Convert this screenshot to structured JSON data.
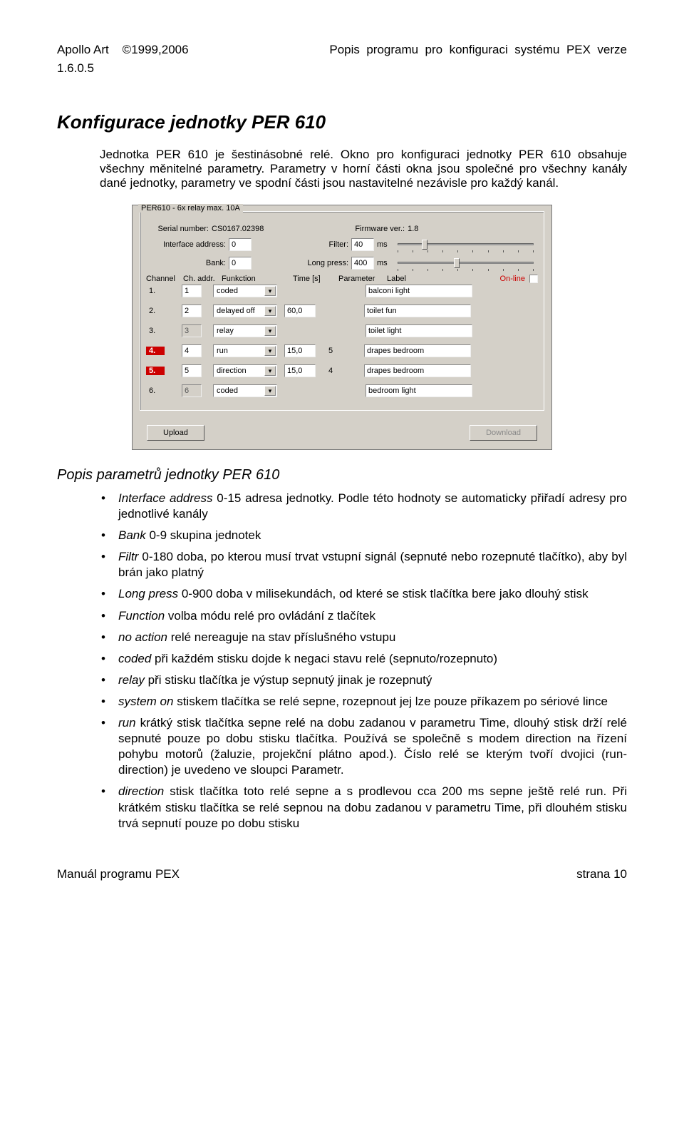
{
  "header": {
    "company": "Apollo Art",
    "copyright": "©1999,2006",
    "title_right": "Popis  programu  pro  konfiguraci  systému  PEX  verze",
    "version": "1.6.0.5"
  },
  "chapter": "Konfigurace jednotky PER 610",
  "intro": "Jednotka PER 610 je šestinásobné relé. Okno pro konfiguraci jednotky PER 610 obsahuje všechny měnitelné parametry. Parametry v horní části okna jsou společné pro všechny kanály dané jednotky, parametry ve spodní části jsou nastavitelné nezávisle pro každý kanál.",
  "shot": {
    "group_title": "PER610 - 6x relay max. 10A",
    "serial_lbl": "Serial number:",
    "serial": "CS0167.02398",
    "fw_lbl": "Firmware ver.:",
    "fw": "1.8",
    "iface_lbl": "Interface address:",
    "iface": "0",
    "bank_lbl": "Bank:",
    "bank": "0",
    "filter_lbl": "Filter:",
    "filter": "40",
    "filter_unit": "ms",
    "long_lbl": "Long press:",
    "long": "400",
    "long_unit": "ms",
    "hdr_channel": "Channel",
    "hdr_chaddr": "Ch. addr.",
    "hdr_func": "Funkction",
    "hdr_time": "Time [s]",
    "hdr_param": "Parameter",
    "hdr_label": "Label",
    "online": "On-line",
    "channels": [
      {
        "n": "1.",
        "addr": "1",
        "addr_gray": false,
        "func": "coded",
        "time": "",
        "param": "",
        "label": "balconi light",
        "red": false
      },
      {
        "n": "2.",
        "addr": "2",
        "addr_gray": false,
        "func": "delayed off",
        "time": "60,0",
        "param": "",
        "label": "toilet fun",
        "red": false
      },
      {
        "n": "3.",
        "addr": "3",
        "addr_gray": true,
        "func": "relay",
        "time": "",
        "param": "",
        "label": "toilet light",
        "red": false
      },
      {
        "n": "4.",
        "addr": "4",
        "addr_gray": false,
        "func": "run",
        "time": "15,0",
        "param": "5",
        "label": "drapes bedroom",
        "red": true
      },
      {
        "n": "5.",
        "addr": "5",
        "addr_gray": false,
        "func": "direction",
        "time": "15,0",
        "param": "4",
        "label": "drapes bedroom",
        "red": true
      },
      {
        "n": "6.",
        "addr": "6",
        "addr_gray": true,
        "func": "coded",
        "time": "",
        "param": "",
        "label": "bedroom light",
        "red": false
      }
    ],
    "upload": "Upload",
    "download": "Download"
  },
  "sub_title": "Popis parametrů jednotky PER 610",
  "params": [
    {
      "name": "Interface address",
      "rest": "   0-15     adresa jednotky. Podle této hodnoty se automaticky přiřadí adresy pro jednotlivé kanály"
    },
    {
      "name": "Bank",
      "rest": "     0-9          skupina jednotek"
    },
    {
      "name": "Filtr",
      "rest": "               0-180  doba, po kterou musí trvat vstupní signál (sepnuté nebo rozepnuté tlačítko), aby byl brán jako platný"
    },
    {
      "name": "Long press",
      "rest": "        0-900  doba v milisekundách, od které se stisk tlačítka bere jako dlouhý stisk"
    },
    {
      "name": "Function",
      "rest": "          volba módu relé pro ovládání z tlačítek"
    },
    {
      "name": "no action",
      "rest": "         relé nereaguje na stav příslušného vstupu"
    },
    {
      "name": "coded",
      "rest": "             při každém stisku dojde k negaci stavu relé (sepnuto/rozepnuto)"
    },
    {
      "name": "relay",
      "rest": "               při stisku tlačítka je výstup sepnutý jinak je rozepnutý"
    },
    {
      "name": "system on",
      "rest": "        stiskem tlačítka se relé sepne, rozepnout jej lze pouze příkazem po sériové lince"
    },
    {
      "name": "run",
      "rest": "                  krátký stisk tlačítka sepne relé na dobu zadanou v parametru Time, dlouhý stisk drží relé sepnuté pouze po dobu stisku tlačítka. Používá se společně s modem direction na řízení pohybu motorů (žaluzie, projekční plátno apod.). Číslo relé se kterým tvoří dvojici (run-direction) je uvedeno ve sloupci Parametr."
    },
    {
      "name": "direction",
      "rest": "           stisk tlačítka toto relé sepne a s prodlevou cca 200 ms sepne ještě relé run. Při krátkém stisku tlačítka se relé sepnou na dobu zadanou v parametru Time, při dlouhém stisku trvá sepnutí pouze po dobu stisku"
    }
  ],
  "footer": {
    "left": "Manuál programu PEX",
    "right": "strana 10"
  }
}
